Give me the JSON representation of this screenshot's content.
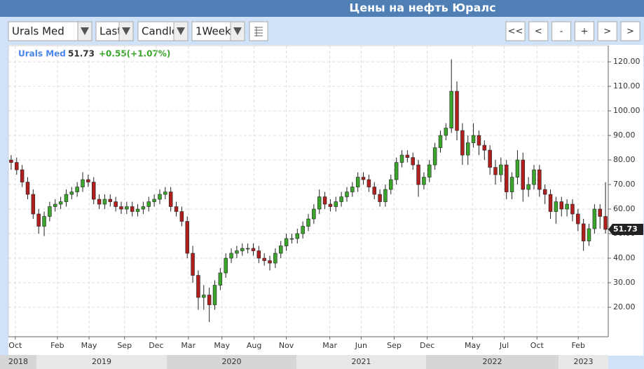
{
  "page_title": "Цены на нефть Юралс",
  "toolbar": {
    "dropdowns": [
      "Urals Med",
      "Last",
      "Candle",
      "1Week"
    ],
    "buttons": [
      "<<",
      "<",
      "-",
      "+",
      ">",
      ">"
    ]
  },
  "chart_data": {
    "type": "candlestick",
    "legend": {
      "name": "Urals Med",
      "last": 51.73,
      "change": "+0.55(+1.07%)"
    },
    "up_color": "#3aa52a",
    "down_color": "#b01e1e",
    "x": [
      1,
      3,
      5,
      7,
      9,
      11,
      13,
      15,
      17,
      19,
      21,
      23,
      25,
      27,
      29,
      31,
      33,
      35,
      37,
      39,
      41,
      43,
      45,
      47,
      49,
      51,
      53,
      55,
      57,
      59,
      61,
      63,
      65,
      67,
      69,
      71,
      73,
      75,
      77,
      79,
      81,
      83,
      85,
      87,
      89,
      91,
      93,
      95,
      97,
      99,
      101,
      103,
      105,
      107,
      109,
      111,
      113,
      115,
      117,
      119,
      121,
      123,
      125,
      127,
      129,
      131,
      133,
      135,
      137,
      139,
      141,
      143,
      145,
      147,
      149,
      151,
      153,
      155,
      157,
      159,
      161,
      163,
      165,
      167,
      169,
      171,
      173,
      175,
      177,
      179,
      181,
      183,
      185,
      187,
      189,
      191,
      193,
      195,
      197,
      199,
      201,
      203,
      205,
      207,
      209,
      211,
      213,
      215,
      217
    ],
    "open": [
      80,
      79,
      76,
      71,
      66,
      58,
      53,
      57,
      61,
      62,
      63,
      66,
      67,
      69,
      72,
      71,
      64,
      62,
      64,
      63,
      61,
      60,
      61,
      59,
      60,
      61,
      63,
      64,
      66,
      67,
      61,
      59,
      55,
      42,
      33,
      24,
      25,
      21,
      29,
      34,
      40,
      42,
      43,
      44,
      44,
      43,
      40,
      39,
      38,
      42,
      45,
      48,
      48,
      50,
      53,
      56,
      60,
      65,
      62,
      61,
      63,
      65,
      67,
      69,
      73,
      72,
      69,
      66,
      63,
      68,
      72,
      79,
      82,
      81,
      78,
      70,
      73,
      78,
      85,
      90,
      93,
      108,
      92,
      82,
      87,
      90,
      86,
      84,
      77,
      74,
      78,
      67,
      73,
      80,
      68,
      70,
      76,
      68,
      66,
      59,
      63,
      60,
      62,
      58,
      54,
      47,
      52,
      60,
      57
    ],
    "high": [
      82,
      81,
      78,
      73,
      68,
      60,
      59,
      63,
      64,
      65,
      68,
      69,
      71,
      75,
      74,
      73,
      66,
      66,
      66,
      65,
      63,
      63,
      63,
      62,
      63,
      65,
      66,
      68,
      69,
      69,
      63,
      61,
      57,
      45,
      35,
      29,
      28,
      31,
      36,
      42,
      44,
      45,
      46,
      46,
      46,
      45,
      42,
      41,
      44,
      47,
      50,
      50,
      52,
      55,
      58,
      62,
      68,
      67,
      64,
      65,
      67,
      69,
      71,
      75,
      75,
      74,
      71,
      68,
      70,
      74,
      81,
      84,
      84,
      83,
      80,
      75,
      80,
      87,
      92,
      95,
      121,
      112,
      95,
      90,
      95,
      92,
      88,
      86,
      80,
      81,
      80,
      75,
      84,
      83,
      73,
      78,
      78,
      70,
      68,
      65,
      65,
      64,
      64,
      60,
      56,
      54,
      62,
      62,
      71
    ],
    "low": [
      76,
      74,
      69,
      64,
      56,
      50,
      49,
      55,
      59,
      60,
      61,
      64,
      65,
      67,
      69,
      62,
      60,
      60,
      61,
      59,
      58,
      58,
      57,
      57,
      58,
      59,
      61,
      62,
      64,
      59,
      57,
      53,
      40,
      30,
      19,
      19,
      14,
      19,
      27,
      32,
      38,
      40,
      41,
      42,
      41,
      38,
      37,
      35,
      36,
      40,
      43,
      46,
      46,
      48,
      51,
      54,
      58,
      60,
      59,
      59,
      61,
      63,
      65,
      67,
      70,
      67,
      64,
      61,
      61,
      66,
      70,
      77,
      79,
      76,
      65,
      68,
      71,
      76,
      83,
      88,
      91,
      88,
      78,
      78,
      85,
      82,
      80,
      74,
      70,
      71,
      64,
      64,
      70,
      63,
      65,
      68,
      65,
      62,
      56,
      54,
      57,
      57,
      55,
      51,
      43,
      45,
      50,
      52,
      50
    ],
    "close": [
      79,
      76,
      71,
      66,
      58,
      53,
      57,
      61,
      62,
      63,
      66,
      67,
      69,
      72,
      71,
      64,
      62,
      64,
      63,
      61,
      60,
      61,
      59,
      60,
      61,
      63,
      64,
      66,
      67,
      61,
      59,
      55,
      42,
      33,
      24,
      25,
      21,
      29,
      34,
      40,
      42,
      43,
      44,
      44,
      43,
      40,
      39,
      38,
      42,
      45,
      48,
      48,
      50,
      53,
      56,
      60,
      65,
      62,
      61,
      63,
      65,
      67,
      69,
      73,
      72,
      69,
      66,
      63,
      68,
      72,
      79,
      82,
      81,
      78,
      70,
      73,
      78,
      85,
      90,
      93,
      108,
      92,
      82,
      87,
      90,
      86,
      84,
      77,
      74,
      78,
      67,
      73,
      80,
      68,
      70,
      76,
      68,
      66,
      59,
      63,
      60,
      62,
      58,
      54,
      47,
      52,
      60,
      57,
      51.73
    ],
    "xlim": [
      0,
      218
    ],
    "xticks": [
      {
        "value": 2.5,
        "label": "Oct"
      },
      {
        "value": 17.8,
        "label": "Feb"
      },
      {
        "value": 29.3,
        "label": "May"
      },
      {
        "value": 42.2,
        "label": "Sep"
      },
      {
        "value": 53.7,
        "label": "Dec"
      },
      {
        "value": 65.4,
        "label": "Mar"
      },
      {
        "value": 77.6,
        "label": "May"
      },
      {
        "value": 89.3,
        "label": "Aug"
      },
      {
        "value": 101,
        "label": "Nov"
      },
      {
        "value": 116.8,
        "label": "Mar"
      },
      {
        "value": 128.2,
        "label": "Jun"
      },
      {
        "value": 140.2,
        "label": "Sep"
      },
      {
        "value": 152.2,
        "label": "Dec"
      },
      {
        "value": 168.7,
        "label": "May"
      },
      {
        "value": 180.2,
        "label": "Jul"
      },
      {
        "value": 192.1,
        "label": "Oct"
      },
      {
        "value": 207.1,
        "label": "Feb"
      }
    ],
    "years": [
      "2018",
      "2019",
      "2020",
      "2021",
      "2022",
      "2023"
    ],
    "ylim": [
      8,
      126.6
    ],
    "yticks": [
      {
        "value": 20,
        "label": "20.00"
      },
      {
        "value": 30,
        "label": "30.00"
      },
      {
        "value": 40,
        "label": "40.00"
      },
      {
        "value": 50,
        "label": "50.00"
      },
      {
        "value": 60,
        "label": "60.00"
      },
      {
        "value": 70,
        "label": "70.00"
      },
      {
        "value": 80,
        "label": "80.00"
      },
      {
        "value": 90,
        "label": "90.00"
      },
      {
        "value": 100,
        "label": "100.00"
      },
      {
        "value": 110,
        "label": "110.00"
      },
      {
        "value": 120,
        "label": "120.00"
      }
    ],
    "grid": true
  }
}
